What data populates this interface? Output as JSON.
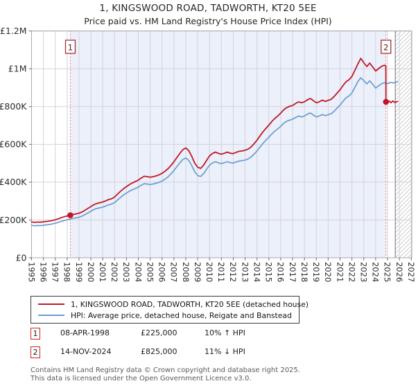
{
  "chart": {
    "title": "1, KINGSWOOD ROAD, TADWORTH, KT20 5EE",
    "subtitle": "Price paid vs. HM Land Registry's House Price Index (HPI)"
  },
  "chart_data": {
    "type": "line",
    "unit": "GBP thousands",
    "x_range": [
      1995,
      2027.05
    ],
    "y_range": [
      0,
      1200
    ],
    "x_ticks": [
      1995,
      1996,
      1997,
      1998,
      1999,
      2000,
      2001,
      2002,
      2003,
      2004,
      2005,
      2006,
      2007,
      2008,
      2009,
      2010,
      2011,
      2012,
      2013,
      2014,
      2015,
      2016,
      2017,
      2018,
      2019,
      2020,
      2021,
      2022,
      2023,
      2024,
      2025,
      2026,
      2027
    ],
    "y_ticks": [
      {
        "value": 0,
        "label": "£0"
      },
      {
        "value": 200,
        "label": "£200K"
      },
      {
        "value": 400,
        "label": "£400K"
      },
      {
        "value": 600,
        "label": "£600K"
      },
      {
        "value": 800,
        "label": "£800K"
      },
      {
        "value": 1000,
        "label": "£1M"
      },
      {
        "value": 1200,
        "label": "£1.2M"
      }
    ],
    "grid": true,
    "legend_position": "bottom",
    "owned_region": [
      1998.27,
      2024.87
    ],
    "hatch_from": 2025.66,
    "colors": {
      "price_line": "#c31525",
      "hpi_line": "#6b9bd2",
      "shade": "#ebf0fa",
      "dashed_marker": "#e87070",
      "grid": "#d2d2dc",
      "spine": "#a8a8b0"
    },
    "series": [
      {
        "name": "1, KINGSWOOD ROAD, TADWORTH, KT20 5EE (detached house)",
        "color": "#c31525",
        "points": [
          [
            1995.0,
            190
          ],
          [
            1995.25,
            187
          ],
          [
            1995.5,
            189
          ],
          [
            1995.75,
            188
          ],
          [
            1996.0,
            190
          ],
          [
            1996.25,
            192
          ],
          [
            1996.5,
            194
          ],
          [
            1996.75,
            197
          ],
          [
            1997.0,
            201
          ],
          [
            1997.25,
            206
          ],
          [
            1997.5,
            212
          ],
          [
            1997.75,
            217
          ],
          [
            1998.0,
            221
          ],
          [
            1998.27,
            225
          ],
          [
            1998.5,
            229
          ],
          [
            1998.75,
            232
          ],
          [
            1999.0,
            236
          ],
          [
            1999.25,
            242
          ],
          [
            1999.5,
            251
          ],
          [
            1999.75,
            261
          ],
          [
            2000.0,
            271
          ],
          [
            2000.25,
            281
          ],
          [
            2000.5,
            287
          ],
          [
            2000.75,
            291
          ],
          [
            2001.0,
            295
          ],
          [
            2001.25,
            301
          ],
          [
            2001.5,
            308
          ],
          [
            2001.75,
            312
          ],
          [
            2002.0,
            321
          ],
          [
            2002.25,
            337
          ],
          [
            2002.5,
            352
          ],
          [
            2002.75,
            365
          ],
          [
            2003.0,
            376
          ],
          [
            2003.25,
            387
          ],
          [
            2003.5,
            396
          ],
          [
            2003.75,
            403
          ],
          [
            2004.0,
            411
          ],
          [
            2004.25,
            422
          ],
          [
            2004.5,
            431
          ],
          [
            2004.75,
            429
          ],
          [
            2005.0,
            426
          ],
          [
            2005.25,
            429
          ],
          [
            2005.5,
            433
          ],
          [
            2005.75,
            439
          ],
          [
            2006.0,
            447
          ],
          [
            2006.25,
            458
          ],
          [
            2006.5,
            471
          ],
          [
            2006.75,
            488
          ],
          [
            2007.0,
            508
          ],
          [
            2007.25,
            530
          ],
          [
            2007.5,
            552
          ],
          [
            2007.75,
            572
          ],
          [
            2008.0,
            581
          ],
          [
            2008.25,
            567
          ],
          [
            2008.5,
            537
          ],
          [
            2008.75,
            501
          ],
          [
            2009.0,
            479
          ],
          [
            2009.25,
            473
          ],
          [
            2009.5,
            490
          ],
          [
            2009.75,
            515
          ],
          [
            2010.0,
            539
          ],
          [
            2010.25,
            552
          ],
          [
            2010.5,
            559
          ],
          [
            2010.75,
            552
          ],
          [
            2011.0,
            548
          ],
          [
            2011.25,
            553
          ],
          [
            2011.5,
            559
          ],
          [
            2011.75,
            553
          ],
          [
            2012.0,
            551
          ],
          [
            2012.25,
            558
          ],
          [
            2012.5,
            563
          ],
          [
            2012.75,
            565
          ],
          [
            2013.0,
            569
          ],
          [
            2013.25,
            575
          ],
          [
            2013.5,
            586
          ],
          [
            2013.75,
            603
          ],
          [
            2014.0,
            622
          ],
          [
            2014.25,
            644
          ],
          [
            2014.5,
            666
          ],
          [
            2014.75,
            684
          ],
          [
            2015.0,
            702
          ],
          [
            2015.25,
            721
          ],
          [
            2015.5,
            737
          ],
          [
            2015.75,
            750
          ],
          [
            2016.0,
            765
          ],
          [
            2016.25,
            783
          ],
          [
            2016.5,
            794
          ],
          [
            2016.75,
            801
          ],
          [
            2017.0,
            806
          ],
          [
            2017.25,
            816
          ],
          [
            2017.5,
            825
          ],
          [
            2017.75,
            820
          ],
          [
            2018.0,
            825
          ],
          [
            2018.25,
            836
          ],
          [
            2018.5,
            843
          ],
          [
            2018.75,
            831
          ],
          [
            2019.0,
            820
          ],
          [
            2019.25,
            825
          ],
          [
            2019.5,
            834
          ],
          [
            2019.75,
            827
          ],
          [
            2020.0,
            833
          ],
          [
            2020.25,
            838
          ],
          [
            2020.5,
            853
          ],
          [
            2020.75,
            871
          ],
          [
            2021.0,
            889
          ],
          [
            2021.25,
            911
          ],
          [
            2021.5,
            931
          ],
          [
            2021.75,
            942
          ],
          [
            2022.0,
            959
          ],
          [
            2022.25,
            992
          ],
          [
            2022.5,
            1025
          ],
          [
            2022.75,
            1055
          ],
          [
            2023.0,
            1032
          ],
          [
            2023.25,
            1012
          ],
          [
            2023.5,
            1030
          ],
          [
            2023.75,
            1010
          ],
          [
            2024.0,
            988
          ],
          [
            2024.25,
            1001
          ],
          [
            2024.5,
            1013
          ],
          [
            2024.75,
            1019
          ],
          [
            2024.86,
            1015
          ],
          [
            2024.87,
            825
          ],
          [
            2025.0,
            818
          ],
          [
            2025.15,
            829
          ],
          [
            2025.3,
            820
          ],
          [
            2025.45,
            830
          ],
          [
            2025.6,
            822
          ],
          [
            2025.85,
            827
          ]
        ]
      },
      {
        "name": "HPI: Average price, detached house, Reigate and Banstead",
        "color": "#6b9bd2",
        "points": [
          [
            1995.0,
            172
          ],
          [
            1995.25,
            169
          ],
          [
            1995.5,
            171
          ],
          [
            1995.75,
            170
          ],
          [
            1996.0,
            172
          ],
          [
            1996.25,
            174
          ],
          [
            1996.5,
            176
          ],
          [
            1996.75,
            179
          ],
          [
            1997.0,
            183
          ],
          [
            1997.25,
            187
          ],
          [
            1997.5,
            192
          ],
          [
            1997.75,
            197
          ],
          [
            1998.0,
            201
          ],
          [
            1998.27,
            205
          ],
          [
            1998.5,
            208
          ],
          [
            1998.75,
            211
          ],
          [
            1999.0,
            214
          ],
          [
            1999.25,
            220
          ],
          [
            1999.5,
            228
          ],
          [
            1999.75,
            237
          ],
          [
            2000.0,
            246
          ],
          [
            2000.25,
            255
          ],
          [
            2000.5,
            261
          ],
          [
            2000.75,
            264
          ],
          [
            2001.0,
            268
          ],
          [
            2001.25,
            274
          ],
          [
            2001.5,
            280
          ],
          [
            2001.75,
            284
          ],
          [
            2002.0,
            292
          ],
          [
            2002.25,
            306
          ],
          [
            2002.5,
            320
          ],
          [
            2002.75,
            332
          ],
          [
            2003.0,
            342
          ],
          [
            2003.25,
            352
          ],
          [
            2003.5,
            360
          ],
          [
            2003.75,
            366
          ],
          [
            2004.0,
            374
          ],
          [
            2004.25,
            384
          ],
          [
            2004.5,
            392
          ],
          [
            2004.75,
            390
          ],
          [
            2005.0,
            387
          ],
          [
            2005.25,
            390
          ],
          [
            2005.5,
            394
          ],
          [
            2005.75,
            399
          ],
          [
            2006.0,
            406
          ],
          [
            2006.25,
            416
          ],
          [
            2006.5,
            428
          ],
          [
            2006.75,
            444
          ],
          [
            2007.0,
            462
          ],
          [
            2007.25,
            482
          ],
          [
            2007.5,
            502
          ],
          [
            2007.75,
            520
          ],
          [
            2008.0,
            528
          ],
          [
            2008.25,
            515
          ],
          [
            2008.5,
            488
          ],
          [
            2008.75,
            455
          ],
          [
            2009.0,
            435
          ],
          [
            2009.25,
            430
          ],
          [
            2009.5,
            445
          ],
          [
            2009.75,
            468
          ],
          [
            2010.0,
            490
          ],
          [
            2010.25,
            502
          ],
          [
            2010.5,
            508
          ],
          [
            2010.75,
            502
          ],
          [
            2011.0,
            498
          ],
          [
            2011.25,
            503
          ],
          [
            2011.5,
            508
          ],
          [
            2011.75,
            503
          ],
          [
            2012.0,
            501
          ],
          [
            2012.25,
            507
          ],
          [
            2012.5,
            512
          ],
          [
            2012.75,
            514
          ],
          [
            2013.0,
            517
          ],
          [
            2013.25,
            523
          ],
          [
            2013.5,
            533
          ],
          [
            2013.75,
            548
          ],
          [
            2014.0,
            565
          ],
          [
            2014.25,
            585
          ],
          [
            2014.5,
            605
          ],
          [
            2014.75,
            622
          ],
          [
            2015.0,
            638
          ],
          [
            2015.25,
            655
          ],
          [
            2015.5,
            670
          ],
          [
            2015.75,
            682
          ],
          [
            2016.0,
            695
          ],
          [
            2016.25,
            712
          ],
          [
            2016.5,
            722
          ],
          [
            2016.75,
            728
          ],
          [
            2017.0,
            733
          ],
          [
            2017.25,
            742
          ],
          [
            2017.5,
            750
          ],
          [
            2017.75,
            745
          ],
          [
            2018.0,
            750
          ],
          [
            2018.25,
            760
          ],
          [
            2018.5,
            766
          ],
          [
            2018.75,
            755
          ],
          [
            2019.0,
            745
          ],
          [
            2019.25,
            750
          ],
          [
            2019.5,
            758
          ],
          [
            2019.75,
            752
          ],
          [
            2020.0,
            757
          ],
          [
            2020.25,
            762
          ],
          [
            2020.5,
            775
          ],
          [
            2020.75,
            792
          ],
          [
            2021.0,
            808
          ],
          [
            2021.25,
            828
          ],
          [
            2021.5,
            846
          ],
          [
            2021.75,
            856
          ],
          [
            2022.0,
            872
          ],
          [
            2022.25,
            902
          ],
          [
            2022.5,
            932
          ],
          [
            2022.75,
            952
          ],
          [
            2023.0,
            938
          ],
          [
            2023.25,
            920
          ],
          [
            2023.5,
            936
          ],
          [
            2023.75,
            918
          ],
          [
            2024.0,
            898
          ],
          [
            2024.25,
            910
          ],
          [
            2024.5,
            921
          ],
          [
            2024.75,
            926
          ],
          [
            2025.0,
            921
          ],
          [
            2025.25,
            928
          ],
          [
            2025.5,
            925
          ],
          [
            2025.85,
            931
          ]
        ]
      }
    ],
    "sales": [
      {
        "num": "1",
        "x": 1998.27,
        "y": 225,
        "date": "08-APR-1998",
        "price_label": "£225,000",
        "hpi_label": "10% ↑ HPI"
      },
      {
        "num": "2",
        "x": 2024.87,
        "y": 825,
        "date": "14-NOV-2024",
        "price_label": "£825,000",
        "hpi_label": "11% ↓ HPI"
      }
    ]
  },
  "footer": {
    "line1": "Contains HM Land Registry data © Crown copyright and database right 2025.",
    "line2": "This data is licensed under the Open Government Licence v3.0."
  }
}
